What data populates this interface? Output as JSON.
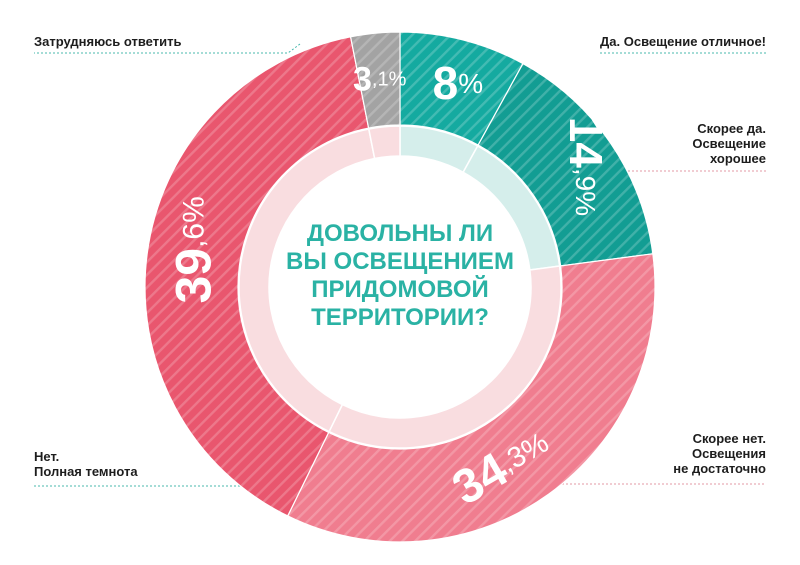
{
  "colors": {
    "teal": "#14aaa0",
    "teal_dark": "#129d93",
    "red": "#e9566e",
    "pink": "#f07d8f",
    "grey": "#a3a3a3",
    "question": "#2ab2a4",
    "inner_ring": "#f9dde0",
    "inner_ring_teal": "#d5eeeb"
  },
  "chart_data": {
    "type": "pie",
    "title": "ДОВОЛЬНЫ ЛИ ВЫ ОСВЕЩЕНИЕМ ПРИДОМОВОЙ ТЕРРИТОРИИ?",
    "title_lines": [
      "ДОВОЛЬНЫ ЛИ",
      "ВЫ ОСВЕЩЕНИЕМ",
      "ПРИДОМОВОЙ",
      "ТЕРРИТОРИИ?"
    ],
    "slices": [
      {
        "label": "Да. Освещение отличное!",
        "label_lines": [
          "Да. Освещение отличное!"
        ],
        "value": 8,
        "value_int": "8",
        "value_dec": "",
        "color": "#14aaa0"
      },
      {
        "label": "Скорее да. Освещение хорошее",
        "label_lines": [
          "Скорее да.",
          "Освещение",
          "хорошее"
        ],
        "value": 14.9,
        "value_int": "14",
        "value_dec": ",9",
        "color": "#129d93"
      },
      {
        "label": "Скорее нет. Освещения не достаточно",
        "label_lines": [
          "Скорее нет.",
          "Освещения",
          "не достаточно"
        ],
        "value": 34.3,
        "value_int": "34",
        "value_dec": ",3",
        "color": "#f07d8f"
      },
      {
        "label": "Нет. Полная темнота",
        "label_lines": [
          "Нет.",
          "Полная темнота"
        ],
        "value": 39.6,
        "value_int": "39",
        "value_dec": ",6",
        "color": "#e9566e"
      },
      {
        "label": "Затрудняюсь ответить",
        "label_lines": [
          "Затрудняюсь ответить"
        ],
        "value": 3.1,
        "value_int": "3",
        "value_dec": ",1",
        "color": "#a3a3a3"
      }
    ],
    "percent_sign": "%",
    "legend": "around"
  }
}
